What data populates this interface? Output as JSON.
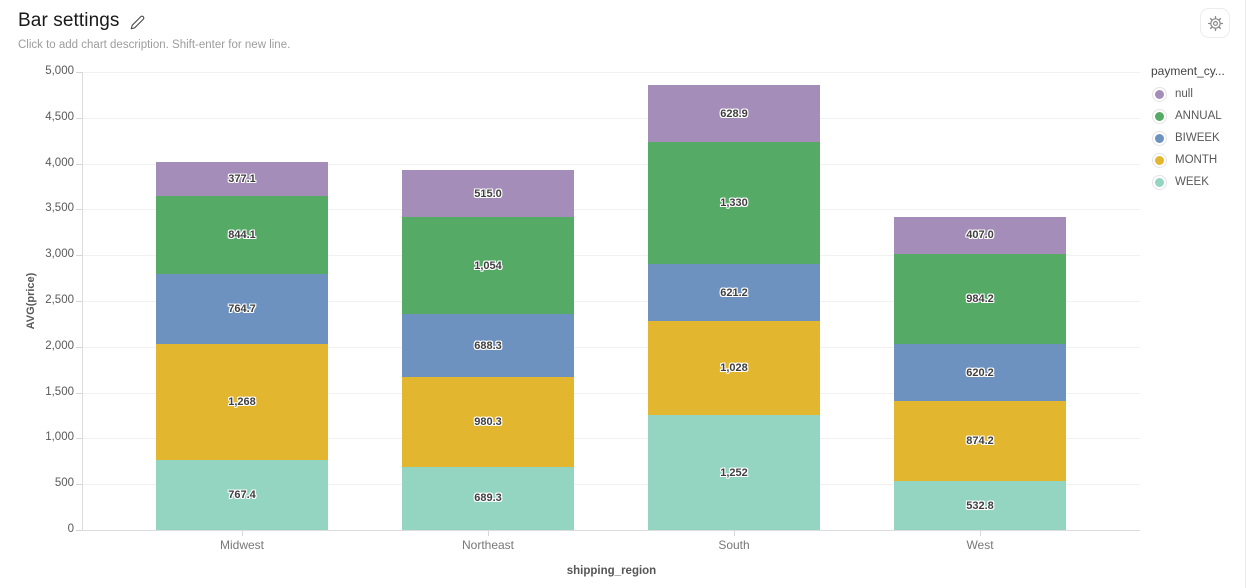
{
  "header": {
    "title": "Bar settings",
    "description_placeholder": "Click to add chart description. Shift-enter for new line."
  },
  "icons": {
    "edit_title": "pencil-icon",
    "settings": "gear-icon"
  },
  "chart_data": {
    "type": "bar",
    "stacked": true,
    "title": "Bar settings",
    "xlabel": "shipping_region",
    "ylabel": "AVG(price)",
    "ylim": [
      0,
      5000
    ],
    "ytick_step": 500,
    "ytick_labels": [
      "0",
      "500",
      "1,000",
      "1,500",
      "2,000",
      "2,500",
      "3,000",
      "3,500",
      "4,000",
      "4,500",
      "5,000"
    ],
    "grid": true,
    "legend_position": "right",
    "categories": [
      "Midwest",
      "Northeast",
      "South",
      "West"
    ],
    "series": [
      {
        "name": "WEEK",
        "color": "#94d5c1",
        "values": [
          767.4,
          689.3,
          1252,
          532.8
        ],
        "labels": [
          "767.4",
          "689.3",
          "1,252",
          "532.8"
        ]
      },
      {
        "name": "MONTH",
        "color": "#e3b62f",
        "values": [
          1268,
          980.3,
          1028,
          874.2
        ],
        "labels": [
          "1,268",
          "980.3",
          "1,028",
          "874.2"
        ]
      },
      {
        "name": "BIWEEK",
        "color": "#6d92bf",
        "values": [
          764.7,
          688.3,
          621.2,
          620.2
        ],
        "labels": [
          "764.7",
          "688.3",
          "621.2",
          "620.2"
        ]
      },
      {
        "name": "ANNUAL",
        "color": "#55aa66",
        "values": [
          844.1,
          1054,
          1330,
          984.2
        ],
        "labels": [
          "844.1",
          "1,054",
          "1,330",
          "984.2"
        ]
      },
      {
        "name": "null",
        "color": "#a58dba",
        "values": [
          377.1,
          515.0,
          628.9,
          407.0
        ],
        "labels": [
          "377.1",
          "515.0",
          "628.9",
          "407.0"
        ]
      }
    ],
    "legend": {
      "title": "payment_cy...",
      "items": [
        {
          "label": "null",
          "color": "#a58dba"
        },
        {
          "label": "ANNUAL",
          "color": "#55aa66"
        },
        {
          "label": "BIWEEK",
          "color": "#6d92bf"
        },
        {
          "label": "MONTH",
          "color": "#e3b62f"
        },
        {
          "label": "WEEK",
          "color": "#94d5c1"
        }
      ]
    }
  }
}
